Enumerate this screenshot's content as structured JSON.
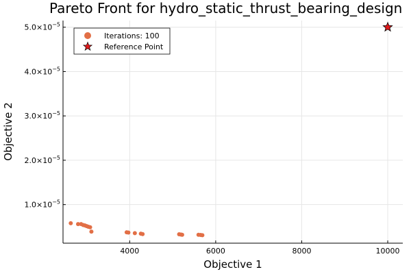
{
  "chart_data": {
    "type": "scatter",
    "title": "Pareto Front for hydro_static_thrust_bearing_design",
    "xlabel": "Objective 1",
    "ylabel": "Objective 2",
    "xlim": [
      2450,
      10350
    ],
    "ylim": [
      1.3e-06,
      5.15e-05
    ],
    "x_ticks": [
      4000,
      6000,
      8000,
      10000
    ],
    "x_tick_labels": [
      "4000",
      "6000",
      "8000",
      "10000"
    ],
    "y_ticks": [
      1e-05,
      2e-05,
      3e-05,
      4e-05,
      5e-05
    ],
    "y_tick_labels": [
      {
        "mantissa": "1.0×10",
        "exp": "−5"
      },
      {
        "mantissa": "2.0×10",
        "exp": "−5"
      },
      {
        "mantissa": "3.0×10",
        "exp": "−5"
      },
      {
        "mantissa": "4.0×10",
        "exp": "−5"
      },
      {
        "mantissa": "5.0×10",
        "exp": "−5"
      }
    ],
    "grid": true,
    "legend_position": "top-left",
    "series": [
      {
        "name": "Iterations: 100",
        "marker": "circle",
        "color": "#e26f46",
        "points": [
          [
            2630,
            5.8e-06
          ],
          [
            2800,
            5.6e-06
          ],
          [
            2870,
            5.6e-06
          ],
          [
            2920,
            5.4e-06
          ],
          [
            2960,
            5.3e-06
          ],
          [
            3000,
            5.15e-06
          ],
          [
            3040,
            5e-06
          ],
          [
            3080,
            4.9e-06
          ],
          [
            3110,
            3.9e-06
          ],
          [
            3930,
            3.75e-06
          ],
          [
            3970,
            3.7e-06
          ],
          [
            4120,
            3.55e-06
          ],
          [
            4260,
            3.45e-06
          ],
          [
            4300,
            3.35e-06
          ],
          [
            5150,
            3.3e-06
          ],
          [
            5190,
            3.25e-06
          ],
          [
            5220,
            3.2e-06
          ],
          [
            5600,
            3.2e-06
          ],
          [
            5650,
            3.15e-06
          ],
          [
            5690,
            3.1e-06
          ]
        ]
      },
      {
        "name": "Reference Point",
        "marker": "star",
        "color": "#e31a1c",
        "points": [
          [
            10000,
            5e-05
          ]
        ]
      }
    ]
  }
}
